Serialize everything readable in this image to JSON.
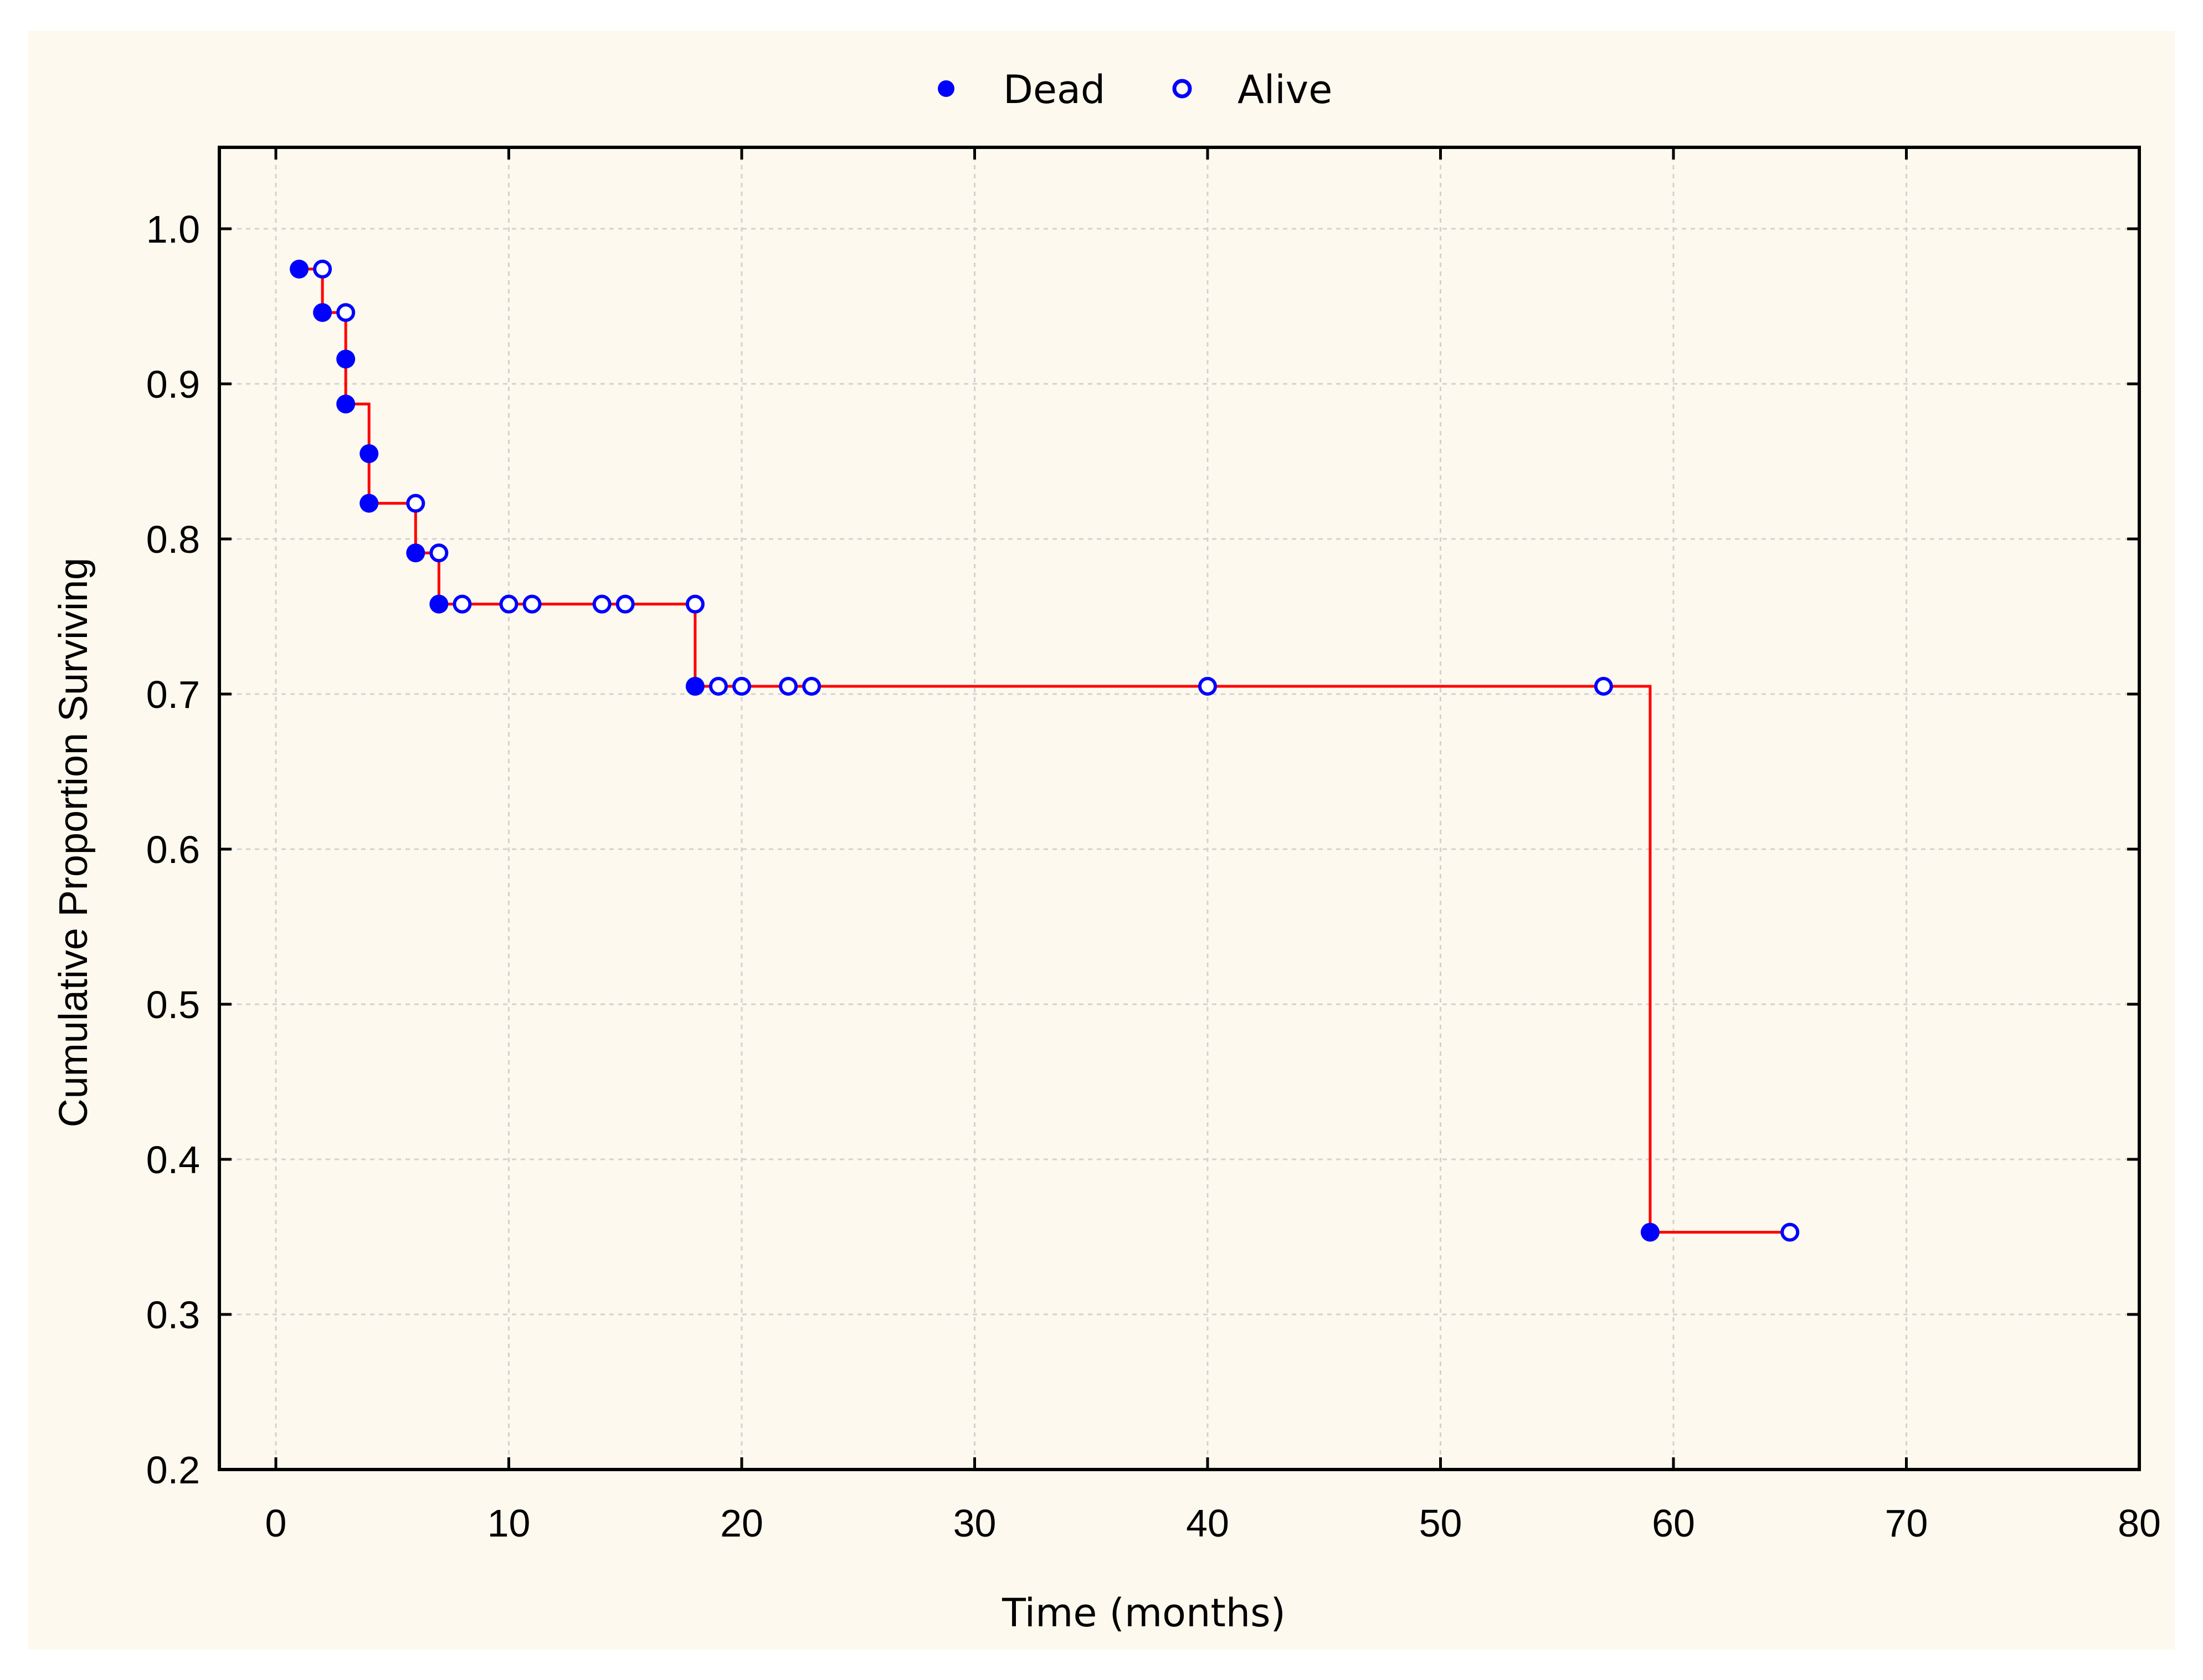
{
  "chart_data": {
    "type": "line",
    "xlabel": "Time (months)",
    "ylabel": "Cumulative Proportion Surviving",
    "xlim": [
      0,
      80
    ],
    "ylim": [
      0.2,
      1.0
    ],
    "x_ticks": [
      "0",
      "10",
      "20",
      "30",
      "40",
      "50",
      "60",
      "70",
      "80"
    ],
    "y_ticks": [
      "0.2",
      "0.3",
      "0.4",
      "0.5",
      "0.6",
      "0.7",
      "0.8",
      "0.9",
      "1.0"
    ],
    "grid": true,
    "legend_position": "top-center",
    "colors": {
      "curve": "#ff0000",
      "markers": "#0000ff",
      "panel_background": "#fdf9ee"
    },
    "series": [
      {
        "name": "Dead",
        "marker": "filled-circle",
        "points": [
          [
            1,
            0.974
          ],
          [
            2,
            0.946
          ],
          [
            3,
            0.916
          ],
          [
            3,
            0.887
          ],
          [
            4,
            0.855
          ],
          [
            4,
            0.823
          ],
          [
            6,
            0.791
          ],
          [
            7,
            0.758
          ],
          [
            18,
            0.705
          ],
          [
            59,
            0.353
          ]
        ]
      },
      {
        "name": "Alive",
        "marker": "open-circle",
        "points": [
          [
            2,
            0.974
          ],
          [
            3,
            0.946
          ],
          [
            6,
            0.823
          ],
          [
            7,
            0.791
          ],
          [
            8,
            0.758
          ],
          [
            10,
            0.758
          ],
          [
            11,
            0.758
          ],
          [
            14,
            0.758
          ],
          [
            15,
            0.758
          ],
          [
            18,
            0.758
          ],
          [
            19,
            0.705
          ],
          [
            20,
            0.705
          ],
          [
            22,
            0.705
          ],
          [
            23,
            0.705
          ],
          [
            40,
            0.705
          ],
          [
            57,
            0.705
          ],
          [
            65,
            0.353
          ]
        ]
      }
    ],
    "survival_curve": [
      [
        1,
        0.974
      ],
      [
        2,
        0.946
      ],
      [
        3,
        0.887
      ],
      [
        4,
        0.823
      ],
      [
        6,
        0.791
      ],
      [
        7,
        0.758
      ],
      [
        18,
        0.705
      ],
      [
        59,
        0.353
      ],
      [
        65,
        0.353
      ]
    ]
  }
}
